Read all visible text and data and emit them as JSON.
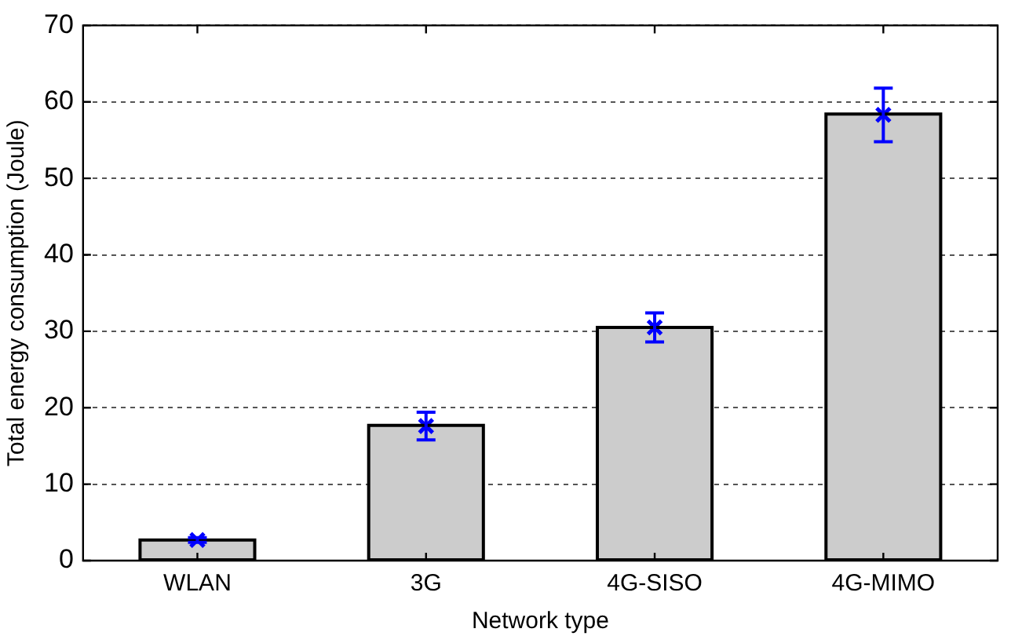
{
  "chart_data": {
    "type": "bar",
    "xlabel": "Network type",
    "ylabel": "Total energy consumption (Joule)",
    "categories": [
      "WLAN",
      "3G",
      "4G-SISO",
      "4G-MIMO"
    ],
    "series": [
      {
        "color": "#cccccc",
        "values": [
          2.7,
          17.7,
          30.5,
          58.4
        ]
      },
      {
        "type": "scatter",
        "color": "#0000ff",
        "x": [
          "WLAN",
          "3G",
          "4G-SISO",
          "4G-MIMO"
        ],
        "values": [
          2.7,
          17.6,
          30.5,
          58.3
        ],
        "errors": [
          0.3,
          1.8,
          1.9,
          3.5
        ],
        "marker": "cross"
      }
    ],
    "ylim": [
      0,
      70
    ],
    "yticks": [
      0,
      10,
      20,
      30,
      40,
      50,
      60,
      70
    ],
    "grid": "y",
    "line_style": "dashed"
  }
}
